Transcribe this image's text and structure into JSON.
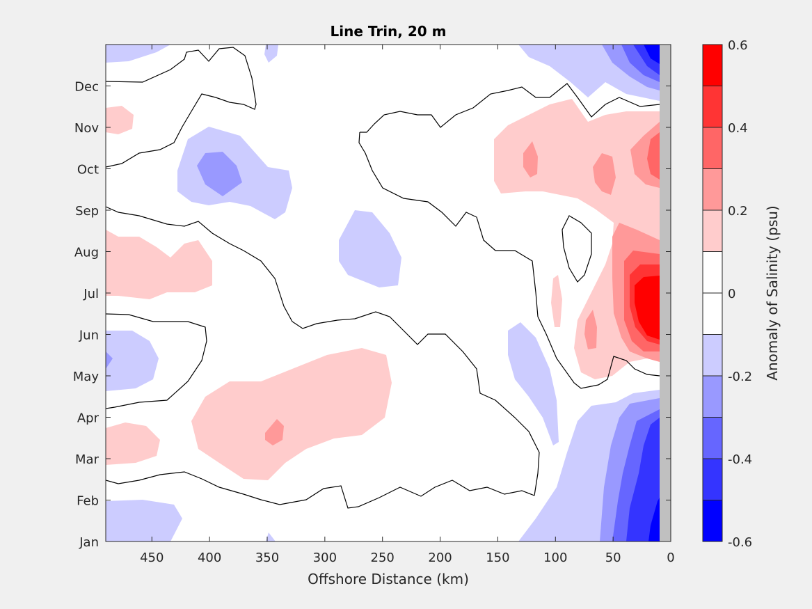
{
  "chart_data": {
    "type": "contourf",
    "title": "Line Trin, 20 m",
    "xlabel": "Offshore Distance (km)",
    "x_reversed": true,
    "xlim": [
      490,
      0
    ],
    "x_ticks": [
      450,
      400,
      350,
      300,
      250,
      200,
      150,
      100,
      50,
      0
    ],
    "y_ticks": [
      "Jan",
      "Feb",
      "Mar",
      "Apr",
      "May",
      "Jun",
      "Jul",
      "Aug",
      "Sep",
      "Oct",
      "Nov",
      "Dec"
    ],
    "colorbar": {
      "label": "Anomaly of Salinity (psu)",
      "range": [
        -0.6,
        0.6
      ],
      "levels": [
        -0.6,
        -0.5,
        -0.4,
        -0.3,
        -0.2,
        -0.1,
        0,
        0.1,
        0.2,
        0.3,
        0.4,
        0.5,
        0.6
      ],
      "tick_values": [
        -0.6,
        -0.4,
        -0.2,
        0,
        0.2,
        0.4,
        0.6
      ],
      "tick_labels": [
        "-0.6",
        "-0.4",
        "-0.2",
        "0",
        "0.2",
        "0.4",
        "0.6"
      ],
      "colors": [
        "#0000ff",
        "#3434ff",
        "#6666ff",
        "#9999ff",
        "#ccccff",
        "#ffffff",
        "#ffffff",
        "#ffcccc",
        "#ff9999",
        "#ff6666",
        "#ff3434",
        "#ff0000"
      ]
    },
    "zero_contour": true,
    "land_color": "#c0c0c0"
  }
}
